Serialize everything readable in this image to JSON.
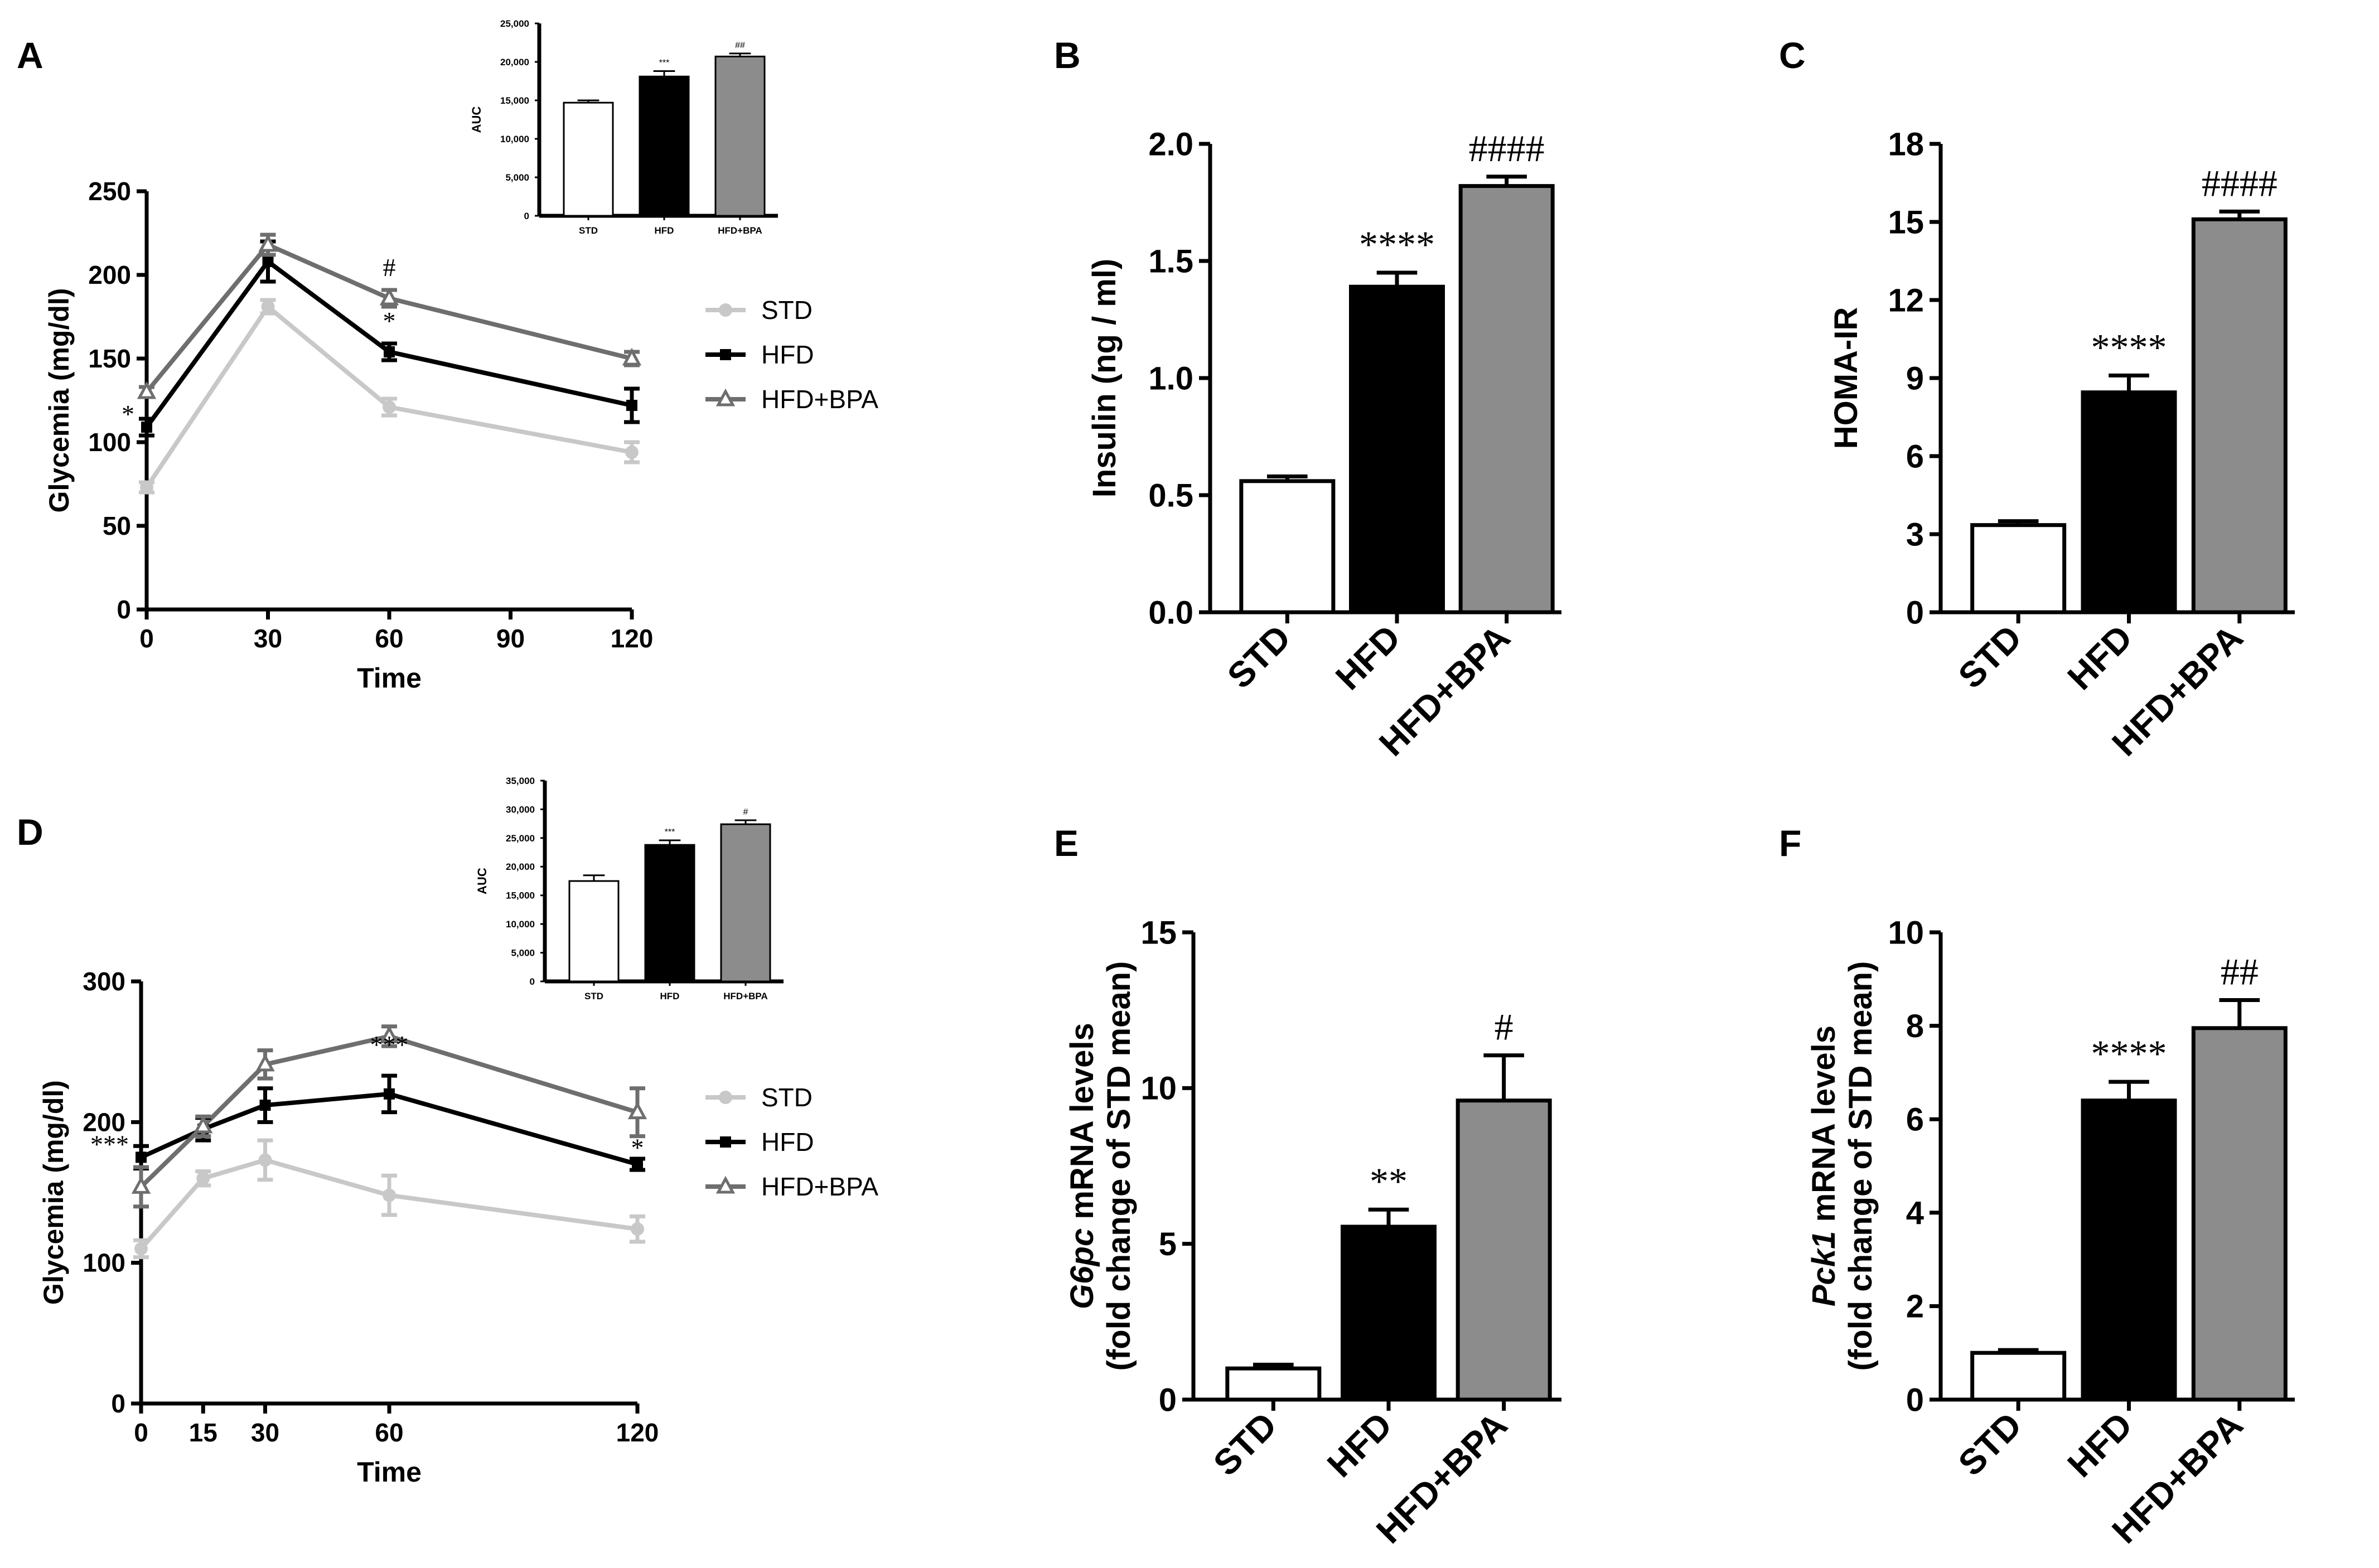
{
  "chart_data": [
    {
      "panel": "A",
      "type": "line",
      "xlabel": "Time",
      "ylabel": "Glycemia (mg/dl)",
      "xlim": [
        0,
        120
      ],
      "ylim": [
        0,
        250
      ],
      "xticks": [
        0,
        30,
        60,
        90,
        120
      ],
      "yticks": [
        0,
        50,
        100,
        150,
        200,
        250
      ],
      "xtick_labels": [
        "0",
        "30",
        "60",
        "90",
        "120"
      ],
      "ytick_labels": [
        "0",
        "50",
        "100",
        "150",
        "200",
        "250"
      ],
      "legend": [
        "STD",
        "HFD",
        "HFD+BPA"
      ],
      "series": [
        {
          "name": "STD",
          "color": "#c8c8c8",
          "marker": "circle",
          "x": [
            0,
            30,
            60,
            120
          ],
          "values": [
            73,
            181,
            121,
            94
          ],
          "err": [
            3,
            4,
            5,
            6
          ]
        },
        {
          "name": "HFD",
          "color": "#000000",
          "marker": "square",
          "x": [
            0,
            30,
            60,
            120
          ],
          "values": [
            109,
            208,
            154,
            122
          ],
          "err": [
            5,
            12,
            5,
            10
          ]
        },
        {
          "name": "HFD+BPA",
          "color": "#6e6e6e",
          "marker": "triangle",
          "x": [
            0,
            30,
            60,
            120
          ],
          "values": [
            130,
            218,
            186,
            150
          ],
          "err": [
            3,
            6,
            5,
            4
          ]
        }
      ],
      "annotations": [
        {
          "text": "*",
          "x": 0,
          "y": 109,
          "side": "left"
        },
        {
          "text": "*",
          "x": 60,
          "y": 154,
          "side": "above"
        },
        {
          "text": "#",
          "x": 60,
          "y": 186,
          "side": "above"
        }
      ],
      "inset": {
        "type": "bar",
        "ylabel": "AUC",
        "categories": [
          "STD",
          "HFD",
          "HFD+BPA"
        ],
        "values": [
          14700,
          18100,
          20700
        ],
        "err": [
          300,
          700,
          400
        ],
        "colors": [
          "#ffffff",
          "#000000",
          "#8c8c8c"
        ],
        "ylim": [
          0,
          25000
        ],
        "yticks": [
          0,
          5000,
          10000,
          15000,
          20000,
          25000
        ],
        "ytick_labels": [
          "0",
          "5,000",
          "10,000",
          "15,000",
          "20,000",
          "25,000"
        ],
        "sig": [
          "",
          "***",
          "##"
        ]
      }
    },
    {
      "panel": "B",
      "type": "bar",
      "ylabel": "Insulin (ng / ml)",
      "categories": [
        "STD",
        "HFD",
        "HFD+BPA"
      ],
      "values": [
        0.56,
        1.39,
        1.82
      ],
      "err": [
        0.02,
        0.06,
        0.04
      ],
      "colors": [
        "#ffffff",
        "#000000",
        "#8c8c8c"
      ],
      "ylim": [
        0,
        2.0
      ],
      "yticks": [
        0,
        0.5,
        1.0,
        1.5,
        2.0
      ],
      "ytick_labels": [
        "0.0",
        "0.5",
        "1.0",
        "1.5",
        "2.0"
      ],
      "sig": [
        "",
        "****",
        "####"
      ]
    },
    {
      "panel": "C",
      "type": "bar",
      "ylabel": "HOMA-IR",
      "categories": [
        "STD",
        "HFD",
        "HFD+BPA"
      ],
      "values": [
        3.35,
        8.45,
        15.1
      ],
      "err": [
        0.15,
        0.65,
        0.3
      ],
      "colors": [
        "#ffffff",
        "#000000",
        "#8c8c8c"
      ],
      "ylim": [
        0,
        18
      ],
      "yticks": [
        0,
        3,
        6,
        9,
        12,
        15,
        18
      ],
      "ytick_labels": [
        "0",
        "3",
        "6",
        "9",
        "12",
        "15",
        "18"
      ],
      "sig": [
        "",
        "****",
        "####"
      ]
    },
    {
      "panel": "D",
      "type": "line",
      "xlabel": "Time",
      "ylabel": "Glycemia (mg/dl)",
      "xlim": [
        0,
        120
      ],
      "ylim": [
        0,
        300
      ],
      "xticks": [
        0,
        15,
        30,
        60,
        120
      ],
      "yticks": [
        0,
        100,
        200,
        300
      ],
      "xtick_labels": [
        "0",
        "15",
        "30",
        "60",
        "120"
      ],
      "ytick_labels": [
        "0",
        "100",
        "200",
        "300"
      ],
      "legend": [
        "STD",
        "HFD",
        "HFD+BPA"
      ],
      "series": [
        {
          "name": "STD",
          "color": "#c8c8c8",
          "marker": "circle",
          "x": [
            0,
            15,
            30,
            60,
            120
          ],
          "values": [
            110,
            160,
            173,
            148,
            124
          ],
          "err": [
            6,
            5,
            14,
            14,
            9
          ]
        },
        {
          "name": "HFD",
          "color": "#000000",
          "marker": "square",
          "x": [
            0,
            15,
            30,
            60,
            120
          ],
          "values": [
            175,
            195,
            212,
            220,
            170
          ],
          "err": [
            8,
            8,
            12,
            13,
            4
          ]
        },
        {
          "name": "HFD+BPA",
          "color": "#6e6e6e",
          "marker": "triangle",
          "x": [
            0,
            15,
            30,
            60,
            120
          ],
          "values": [
            154,
            197,
            241,
            261,
            207
          ],
          "err": [
            14,
            7,
            10,
            7,
            17
          ]
        }
      ],
      "annotations": [
        {
          "text": "***",
          "x": 0,
          "y": 175,
          "side": "left"
        },
        {
          "text": "***",
          "x": 60,
          "y": 233,
          "side": "above"
        },
        {
          "text": "*",
          "x": 120,
          "y": 160,
          "side": "above"
        }
      ],
      "inset": {
        "type": "bar",
        "ylabel": "AUC",
        "categories": [
          "STD",
          "HFD",
          "HFD+BPA"
        ],
        "values": [
          17500,
          23800,
          27400
        ],
        "err": [
          1000,
          800,
          700
        ],
        "colors": [
          "#ffffff",
          "#000000",
          "#8c8c8c"
        ],
        "ylim": [
          0,
          35000
        ],
        "yticks": [
          0,
          5000,
          10000,
          15000,
          20000,
          25000,
          30000,
          35000
        ],
        "ytick_labels": [
          "0",
          "5,000",
          "10,000",
          "15,000",
          "20,000",
          "25,000",
          "30,000",
          "35,000"
        ],
        "sig": [
          "",
          "***",
          "#"
        ]
      }
    },
    {
      "panel": "E",
      "type": "bar",
      "ylabel_italic": "G6pc",
      "ylabel_rest": " mRNA levels",
      "ylabel_line2": "(fold change of STD mean)",
      "categories": [
        "STD",
        "HFD",
        "HFD+BPA"
      ],
      "values": [
        1.0,
        5.55,
        9.6
      ],
      "err": [
        0.12,
        0.55,
        1.45
      ],
      "colors": [
        "#ffffff",
        "#000000",
        "#8c8c8c"
      ],
      "ylim": [
        0,
        15
      ],
      "yticks": [
        0,
        5,
        10,
        15
      ],
      "ytick_labels": [
        "0",
        "5",
        "10",
        "15"
      ],
      "sig": [
        "",
        "**",
        "#"
      ]
    },
    {
      "panel": "F",
      "type": "bar",
      "ylabel_italic": "Pck1",
      "ylabel_rest": " mRNA levels",
      "ylabel_line2": "(fold change of STD mean)",
      "categories": [
        "STD",
        "HFD",
        "HFD+BPA"
      ],
      "values": [
        1.0,
        6.4,
        7.95
      ],
      "err": [
        0.06,
        0.4,
        0.6
      ],
      "colors": [
        "#ffffff",
        "#000000",
        "#8c8c8c"
      ],
      "ylim": [
        0,
        10
      ],
      "yticks": [
        0,
        2,
        4,
        6,
        8,
        10
      ],
      "ytick_labels": [
        "0",
        "2",
        "4",
        "6",
        "8",
        "10"
      ],
      "sig": [
        "",
        "****",
        "##"
      ]
    }
  ]
}
